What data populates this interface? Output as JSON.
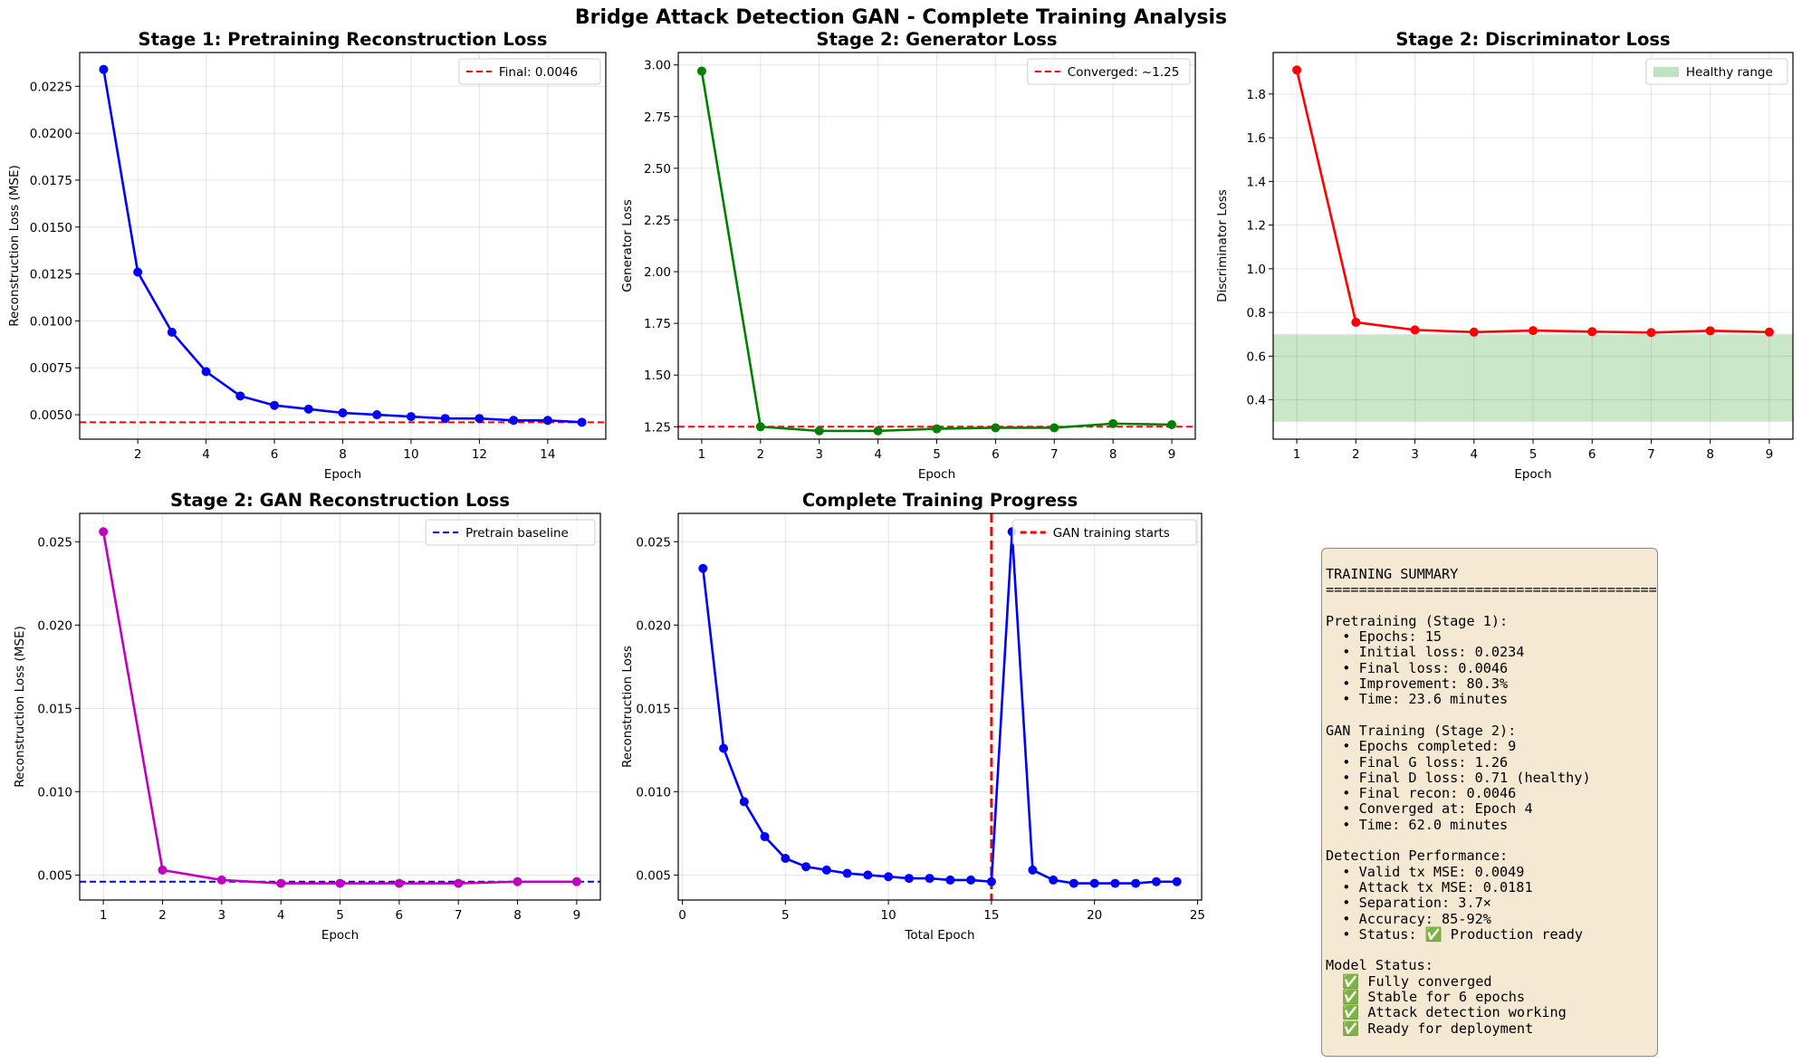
{
  "figure_title": "Bridge Attack Detection GAN - Complete Training Analysis",
  "chart_data": [
    {
      "type": "line",
      "title": "Stage 1: Pretraining Reconstruction Loss",
      "xlabel": "Epoch",
      "ylabel": "Reconstruction Loss (MSE)",
      "x": [
        1,
        2,
        3,
        4,
        5,
        6,
        7,
        8,
        9,
        10,
        11,
        12,
        13,
        14,
        15
      ],
      "series": [
        {
          "values": [
            0.0234,
            0.0126,
            0.0094,
            0.0073,
            0.006,
            0.0055,
            0.0053,
            0.0051,
            0.005,
            0.0049,
            0.0048,
            0.0048,
            0.0047,
            0.0047,
            0.0046
          ],
          "color": "#0000ff"
        }
      ],
      "xlim": [
        0.3,
        15.7
      ],
      "ylim": [
        0.0037,
        0.0243
      ],
      "xticks": [
        2,
        4,
        6,
        8,
        10,
        12,
        14
      ],
      "xtick_labels": [
        "2",
        "4",
        "6",
        "8",
        "10",
        "12",
        "14"
      ],
      "yticks": [
        0.005,
        0.0075,
        0.01,
        0.0125,
        0.015,
        0.0175,
        0.02,
        0.0225
      ],
      "ytick_labels": [
        "0.0050",
        "0.0075",
        "0.0100",
        "0.0125",
        "0.0150",
        "0.0175",
        "0.0200",
        "0.0225"
      ],
      "hline": {
        "value": 0.0046,
        "color": "#ff0000",
        "label": "Final: 0.0046"
      },
      "grid": true,
      "legend": "upper-right"
    },
    {
      "type": "line",
      "title": "Stage 2: Generator Loss",
      "xlabel": "Epoch",
      "ylabel": "Generator Loss",
      "x": [
        1,
        2,
        3,
        4,
        5,
        6,
        7,
        8,
        9
      ],
      "series": [
        {
          "values": [
            2.97,
            1.25,
            1.23,
            1.23,
            1.24,
            1.245,
            1.245,
            1.265,
            1.26
          ],
          "color": "#008000"
        }
      ],
      "xlim": [
        0.6,
        9.4
      ],
      "ylim": [
        1.19,
        3.06
      ],
      "xticks": [
        1,
        2,
        3,
        4,
        5,
        6,
        7,
        8,
        9
      ],
      "xtick_labels": [
        "1",
        "2",
        "3",
        "4",
        "5",
        "6",
        "7",
        "8",
        "9"
      ],
      "yticks": [
        1.25,
        1.5,
        1.75,
        2.0,
        2.25,
        2.5,
        2.75,
        3.0
      ],
      "ytick_labels": [
        "1.25",
        "1.50",
        "1.75",
        "2.00",
        "2.25",
        "2.50",
        "2.75",
        "3.00"
      ],
      "hline": {
        "value": 1.25,
        "color": "#ff0000",
        "label": "Converged: ~1.25"
      },
      "grid": true,
      "legend": "upper-right"
    },
    {
      "type": "line",
      "title": "Stage 2: Discriminator Loss",
      "xlabel": "Epoch",
      "ylabel": "Discriminator Loss",
      "x": [
        1,
        2,
        3,
        4,
        5,
        6,
        7,
        8,
        9
      ],
      "series": [
        {
          "values": [
            1.91,
            0.755,
            0.72,
            0.71,
            0.717,
            0.712,
            0.708,
            0.716,
            0.71
          ],
          "color": "#ff0000"
        }
      ],
      "xlim": [
        0.6,
        9.4
      ],
      "ylim": [
        0.22,
        1.99
      ],
      "xticks": [
        1,
        2,
        3,
        4,
        5,
        6,
        7,
        8,
        9
      ],
      "xtick_labels": [
        "1",
        "2",
        "3",
        "4",
        "5",
        "6",
        "7",
        "8",
        "9"
      ],
      "yticks": [
        0.4,
        0.6,
        0.8,
        1.0,
        1.2,
        1.4,
        1.6,
        1.8
      ],
      "ytick_labels": [
        "0.4",
        "0.6",
        "0.8",
        "1.0",
        "1.2",
        "1.4",
        "1.6",
        "1.8"
      ],
      "hspan": {
        "range": [
          0.3,
          0.7
        ],
        "color": "#2ca02c",
        "label": "Healthy range"
      },
      "grid": true,
      "legend": "upper-right"
    },
    {
      "type": "line",
      "title": "Stage 2: GAN Reconstruction Loss",
      "xlabel": "Epoch",
      "ylabel": "Reconstruction Loss (MSE)",
      "x": [
        1,
        2,
        3,
        4,
        5,
        6,
        7,
        8,
        9
      ],
      "series": [
        {
          "values": [
            0.0256,
            0.0053,
            0.0047,
            0.0045,
            0.0045,
            0.0045,
            0.0045,
            0.0046,
            0.0046
          ],
          "color": "#bf00bf"
        }
      ],
      "xlim": [
        0.6,
        9.4
      ],
      "ylim": [
        0.0035,
        0.0267
      ],
      "xticks": [
        1,
        2,
        3,
        4,
        5,
        6,
        7,
        8,
        9
      ],
      "xtick_labels": [
        "1",
        "2",
        "3",
        "4",
        "5",
        "6",
        "7",
        "8",
        "9"
      ],
      "yticks": [
        0.005,
        0.01,
        0.015,
        0.02,
        0.025
      ],
      "ytick_labels": [
        "0.005",
        "0.010",
        "0.015",
        "0.020",
        "0.025"
      ],
      "hline": {
        "value": 0.0046,
        "color": "#0000ff",
        "label": "Pretrain baseline"
      },
      "grid": true,
      "legend": "upper-right"
    },
    {
      "type": "line",
      "title": "Complete Training Progress",
      "xlabel": "Total Epoch",
      "ylabel": "Reconstruction Loss",
      "x": [
        1,
        2,
        3,
        4,
        5,
        6,
        7,
        8,
        9,
        10,
        11,
        12,
        13,
        14,
        15,
        16,
        17,
        18,
        19,
        20,
        21,
        22,
        23,
        24
      ],
      "series": [
        {
          "values": [
            0.0234,
            0.0126,
            0.0094,
            0.0073,
            0.006,
            0.0055,
            0.0053,
            0.0051,
            0.005,
            0.0049,
            0.0048,
            0.0048,
            0.0047,
            0.0047,
            0.0046,
            0.0256,
            0.0053,
            0.0047,
            0.0045,
            0.0045,
            0.0045,
            0.0045,
            0.0046,
            0.0046
          ],
          "color": "#0000ff"
        }
      ],
      "xlim": [
        -0.2,
        25.2
      ],
      "ylim": [
        0.0035,
        0.0267
      ],
      "xticks": [
        0,
        5,
        10,
        15,
        20,
        25
      ],
      "xtick_labels": [
        "0",
        "5",
        "10",
        "15",
        "20",
        "25"
      ],
      "yticks": [
        0.005,
        0.01,
        0.015,
        0.02,
        0.025
      ],
      "ytick_labels": [
        "0.005",
        "0.010",
        "0.015",
        "0.020",
        "0.025"
      ],
      "vline": {
        "value": 15,
        "color": "#ff0000",
        "label": "GAN training starts"
      },
      "grid": true,
      "legend": "upper-right"
    }
  ],
  "summary": {
    "lines": [
      "TRAINING SUMMARY",
      "========================================",
      "",
      "Pretraining (Stage 1):",
      "  • Epochs: 15",
      "  • Initial loss: 0.0234",
      "  • Final loss: 0.0046",
      "  • Improvement: 80.3%",
      "  • Time: 23.6 minutes",
      "",
      "GAN Training (Stage 2):",
      "  • Epochs completed: 9",
      "  • Final G loss: 1.26",
      "  • Final D loss: 0.71 (healthy)",
      "  • Final recon: 0.0046",
      "  • Converged at: Epoch 4",
      "  • Time: 62.0 minutes",
      "",
      "Detection Performance:",
      "  • Valid tx MSE: 0.0049",
      "  • Attack tx MSE: 0.0181",
      "  • Separation: 3.7×",
      "  • Accuracy: 85-92%",
      "  • Status: ✅ Production ready",
      "",
      "Model Status:",
      "  ✅ Fully converged",
      "  ✅ Stable for 6 epochs",
      "  ✅ Attack detection working",
      "  ✅ Ready for deployment"
    ]
  }
}
